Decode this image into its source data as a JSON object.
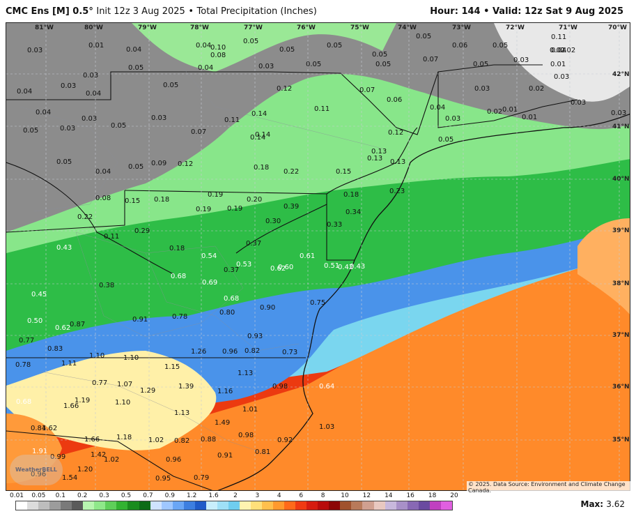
{
  "header": {
    "model": "CMC Ens [M] 0.5",
    "degree": "°",
    "init": "Init 12z 3 Aug 2025",
    "separator": "•",
    "product": "Total Precipitation (Inches)",
    "hour_label": "Hour:",
    "hour": "144",
    "valid_label": "Valid:",
    "valid": "12z Sat 9 Aug 2025"
  },
  "map": {
    "lon_ticks": [
      "81°W",
      "80°W",
      "79°W",
      "78°W",
      "77°W",
      "76°W",
      "75°W",
      "74°W",
      "73°W",
      "72°W",
      "71°W",
      "70°W"
    ],
    "lat_ticks": [
      "42°N",
      "41°N",
      "40°N",
      "39°N",
      "38°N",
      "37°N",
      "36°N",
      "35°N"
    ],
    "values": [
      "0.03",
      "0.01",
      "0.04",
      "0.04",
      "0.05",
      "0.05",
      "0.10",
      "0.08",
      "0.05",
      "0.05",
      "0.05",
      "0.06",
      "0.05",
      "0.11",
      "0.04",
      "0.02",
      "0.02",
      "0.03",
      "0.05",
      "0.04",
      "0.03",
      "0.05",
      "0.05",
      "0.12",
      "0.07",
      "0.07",
      "0.05",
      "0.03",
      "0.03",
      "0.01",
      "0.03",
      "0.02",
      "0.04",
      "0.03",
      "0.05",
      "0.04",
      "0.03",
      "0.04",
      "0.07",
      "0.11",
      "0.14",
      "0.11",
      "0.06",
      "0.04",
      "0.01",
      "0.01",
      "0.03",
      "0.03",
      "0.05",
      "0.03",
      "0.03",
      "0.05",
      "0.14",
      "0.14",
      "0.12",
      "0.03",
      "0.02",
      "0.05",
      "0.05",
      "0.04",
      "0.05",
      "0.09",
      "0.12",
      "0.18",
      "0.22",
      "0.15",
      "0.13",
      "0.13",
      "0.13",
      "0.08",
      "0.15",
      "0.18",
      "0.19",
      "0.19",
      "0.19",
      "0.20",
      "0.18",
      "0.23",
      "0.22",
      "0.11",
      "0.29",
      "0.39",
      "0.34",
      "0.30",
      "0.33",
      "0.43",
      "0.18",
      "0.54",
      "0.53",
      "0.37",
      "0.37",
      "0.62",
      "0.60",
      "0.61",
      "0.51",
      "0.42",
      "0.43",
      "0.45",
      "0.38",
      "0.68",
      "0.69",
      "0.68",
      "0.90",
      "0.75",
      "0.50",
      "0.62",
      "0.87",
      "0.91",
      "0.78",
      "0.80",
      "0.93",
      "0.77",
      "0.83",
      "1.10",
      "1.10",
      "1.26",
      "0.96",
      "0.82",
      "0.73",
      "0.78",
      "1.11",
      "1.15",
      "1.13",
      "0.77",
      "1.07",
      "1.29",
      "1.39",
      "1.16",
      "0.98",
      "0.64",
      "0.68",
      "1.66",
      "1.19",
      "1.10",
      "1.13",
      "1.01",
      "0.84",
      "1.62",
      "1.49",
      "1.03",
      "1.91",
      "1.66",
      "1.18",
      "1.02",
      "0.82",
      "0.88",
      "0.98",
      "0.92",
      "0.99",
      "1.42",
      "1.02",
      "0.96",
      "0.91",
      "0.81",
      "0.96",
      "1.54",
      "1.20",
      "0.95",
      "0.79",
      "0.77"
    ]
  },
  "copyright": "© 2025. Data Source: Environment and Climate Change Canada.",
  "logo_text": "WeatherBELL",
  "scale": {
    "labels": [
      "0.01",
      "0.05",
      "0.1",
      "0.2",
      "0.3",
      "0.5",
      "0.7",
      "0.9",
      "1.2",
      "1.6",
      "2",
      "3",
      "4",
      "6",
      "8",
      "10",
      "12",
      "14",
      "16",
      "18",
      "20"
    ],
    "colors": [
      "#ffffff",
      "#dcdcdc",
      "#bdbdbd",
      "#9c9c9c",
      "#7a7a7a",
      "#5a5a5a",
      "#b8f5b0",
      "#8fe88a",
      "#5fcf5a",
      "#33b332",
      "#1a8c1e",
      "#0d6b16",
      "#cfe3ff",
      "#9fc7ff",
      "#6aa6f5",
      "#3d7fe0",
      "#1f5bc8",
      "#c8eefc",
      "#9fe0f7",
      "#6fcdef",
      "#fff3b0",
      "#ffe07a",
      "#ffc04d",
      "#ff9a2e",
      "#ff6a1a",
      "#f03a12",
      "#d61c10",
      "#b80c0c",
      "#8c0606",
      "#a0522d",
      "#b87a5a",
      "#d0a090",
      "#e8c8c0",
      "#c8b8dc",
      "#a890c8",
      "#8868b4",
      "#6a4aa0",
      "#c040c0",
      "#e060e0"
    ]
  },
  "max": {
    "label": "Max:",
    "value": "3.62"
  }
}
